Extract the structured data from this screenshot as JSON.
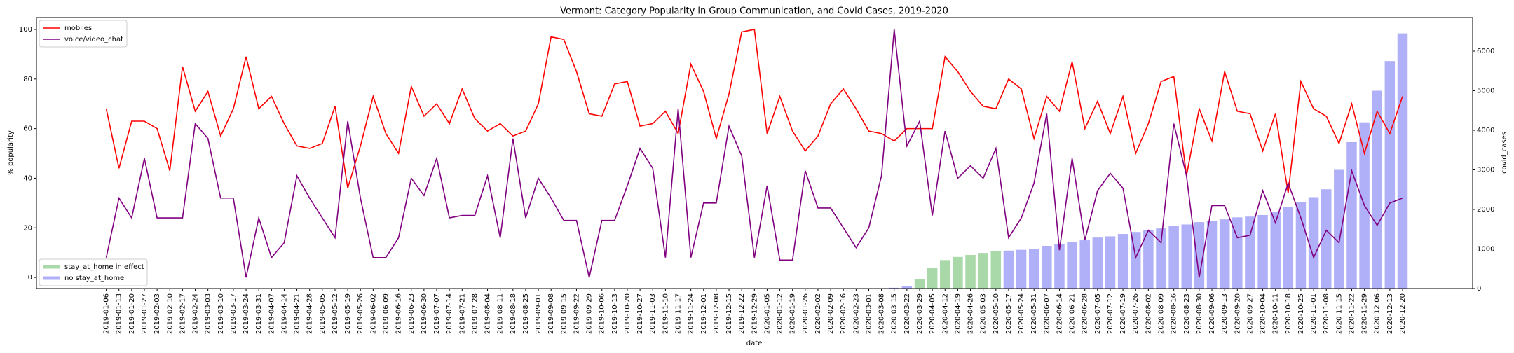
{
  "chart_data": {
    "type": "line",
    "title": "Vermont: Category Popularity in Group Communication, and Covid Cases, 2019-2020",
    "xlabel": "date",
    "ylabel": "% popularity",
    "y2label": "covid_cases",
    "categories": [
      "2019-01-06",
      "2019-01-13",
      "2019-01-20",
      "2019-01-27",
      "2019-02-03",
      "2019-02-10",
      "2019-02-17",
      "2019-02-24",
      "2019-03-03",
      "2019-03-10",
      "2019-03-17",
      "2019-03-24",
      "2019-03-31",
      "2019-04-07",
      "2019-04-14",
      "2019-04-21",
      "2019-04-28",
      "2019-05-05",
      "2019-05-12",
      "2019-05-19",
      "2019-05-26",
      "2019-06-02",
      "2019-06-09",
      "2019-06-16",
      "2019-06-23",
      "2019-06-30",
      "2019-07-07",
      "2019-07-14",
      "2019-07-21",
      "2019-07-28",
      "2019-08-04",
      "2019-08-11",
      "2019-08-18",
      "2019-08-25",
      "2019-09-01",
      "2019-09-08",
      "2019-09-15",
      "2019-09-22",
      "2019-09-29",
      "2019-10-06",
      "2019-10-13",
      "2019-10-20",
      "2019-10-27",
      "2019-11-03",
      "2019-11-10",
      "2019-11-17",
      "2019-11-24",
      "2019-12-01",
      "2019-12-08",
      "2019-12-15",
      "2019-12-22",
      "2019-12-29",
      "2020-01-05",
      "2020-01-12",
      "2020-01-19",
      "2020-01-26",
      "2020-02-02",
      "2020-02-09",
      "2020-02-16",
      "2020-02-23",
      "2020-03-01",
      "2020-03-08",
      "2020-03-15",
      "2020-03-22",
      "2020-03-29",
      "2020-04-05",
      "2020-04-12",
      "2020-04-19",
      "2020-04-26",
      "2020-05-03",
      "2020-05-10",
      "2020-05-17",
      "2020-05-24",
      "2020-05-31",
      "2020-06-07",
      "2020-06-14",
      "2020-06-21",
      "2020-06-28",
      "2020-07-05",
      "2020-07-12",
      "2020-07-19",
      "2020-07-26",
      "2020-08-02",
      "2020-08-09",
      "2020-08-16",
      "2020-08-23",
      "2020-08-30",
      "2020-09-06",
      "2020-09-13",
      "2020-09-20",
      "2020-09-27",
      "2020-10-04",
      "2020-10-11",
      "2020-10-18",
      "2020-10-25",
      "2020-11-01",
      "2020-11-08",
      "2020-11-15",
      "2020-11-22",
      "2020-11-29",
      "2020-12-06",
      "2020-12-13",
      "2020-12-20"
    ],
    "series": [
      {
        "name": "mobiles",
        "type": "line",
        "color": "#ff0000",
        "values": [
          68,
          44,
          63,
          63,
          60,
          43,
          85,
          67,
          75,
          57,
          68,
          89,
          68,
          73,
          62,
          53,
          52,
          54,
          69,
          36,
          53,
          73,
          58,
          50,
          77,
          65,
          70,
          62,
          76,
          64,
          59,
          62,
          57,
          59,
          70,
          97,
          96,
          83,
          66,
          65,
          78,
          79,
          61,
          62,
          67,
          58,
          86,
          75,
          56,
          74,
          99,
          100,
          58,
          73,
          59,
          51,
          57,
          70,
          76,
          68,
          59,
          58,
          55,
          60,
          60,
          60,
          89,
          83,
          75,
          69,
          68,
          80,
          76,
          56,
          73,
          67,
          87,
          60,
          71,
          58,
          73,
          50,
          62,
          79,
          81,
          41,
          68,
          55,
          83,
          67,
          66,
          51,
          66,
          34,
          79,
          68,
          65,
          54,
          70,
          50,
          67,
          58,
          73
        ]
      },
      {
        "name": "voice/video_chat",
        "type": "line",
        "color": "#800080",
        "values": [
          8,
          32,
          24,
          48,
          24,
          24,
          24,
          62,
          56,
          32,
          32,
          0,
          24,
          8,
          14,
          41,
          32,
          24,
          16,
          63,
          32,
          8,
          8,
          16,
          40,
          33,
          48,
          24,
          25,
          25,
          41,
          16,
          56,
          24,
          40,
          32,
          23,
          23,
          0,
          23,
          23,
          37,
          52,
          44,
          8,
          68,
          8,
          30,
          30,
          61,
          49,
          8,
          37,
          7,
          7,
          43,
          28,
          28,
          20,
          12,
          20,
          41,
          100,
          53,
          63,
          25,
          59,
          40,
          45,
          40,
          52,
          16,
          24,
          38,
          66,
          11,
          48,
          15,
          35,
          42,
          36,
          8,
          19,
          14,
          62,
          41,
          0,
          29,
          29,
          16,
          17,
          35,
          22,
          38,
          24,
          8,
          19,
          14,
          43,
          29,
          21,
          30,
          32
        ]
      },
      {
        "name": "stay_at_home in effect",
        "type": "bar",
        "axis": "y2",
        "color": "#a9d8a9",
        "values": [
          null,
          null,
          null,
          null,
          null,
          null,
          null,
          null,
          null,
          null,
          null,
          null,
          null,
          null,
          null,
          null,
          null,
          null,
          null,
          null,
          null,
          null,
          null,
          null,
          null,
          null,
          null,
          null,
          null,
          null,
          null,
          null,
          null,
          null,
          null,
          null,
          null,
          null,
          null,
          null,
          null,
          null,
          null,
          null,
          null,
          null,
          null,
          null,
          null,
          null,
          null,
          null,
          null,
          null,
          null,
          null,
          null,
          null,
          null,
          null,
          null,
          null,
          null,
          null,
          230,
          520,
          720,
          800,
          850,
          900,
          950,
          null,
          null,
          null,
          null,
          null,
          null,
          null,
          null,
          null,
          null,
          null,
          null,
          null,
          null,
          null,
          null,
          null,
          null,
          null,
          null,
          null,
          null,
          null,
          null,
          null,
          null,
          null,
          null,
          null,
          null,
          null,
          null
        ]
      },
      {
        "name": "no stay_at_home",
        "type": "bar",
        "axis": "y2",
        "color": "#b0b0f8",
        "values": [
          0,
          0,
          0,
          0,
          0,
          0,
          0,
          0,
          0,
          0,
          0,
          0,
          0,
          0,
          0,
          0,
          0,
          0,
          0,
          0,
          0,
          0,
          0,
          0,
          0,
          0,
          0,
          0,
          0,
          0,
          0,
          0,
          0,
          0,
          0,
          0,
          0,
          0,
          0,
          0,
          0,
          0,
          0,
          0,
          0,
          0,
          0,
          0,
          0,
          0,
          0,
          0,
          0,
          0,
          0,
          0,
          0,
          0,
          0,
          0,
          0,
          0,
          20,
          60,
          null,
          null,
          null,
          null,
          null,
          null,
          null,
          960,
          980,
          1000,
          1080,
          1120,
          1170,
          1220,
          1290,
          1320,
          1380,
          1430,
          1470,
          1520,
          1580,
          1620,
          1680,
          1710,
          1750,
          1800,
          1820,
          1860,
          1940,
          2060,
          2180,
          2310,
          2510,
          3000,
          3700,
          4200,
          5000,
          5750,
          6450
        ]
      }
    ],
    "ylim": [
      -4.5,
      104.8
    ],
    "yticks": [
      0,
      20,
      40,
      60,
      80,
      100
    ],
    "y2lim": [
      0,
      6850
    ],
    "y2ticks": [
      0,
      1000,
      2000,
      3000,
      4000,
      5000,
      6000
    ],
    "legend": "upper left",
    "bar_legend": "lower left"
  }
}
